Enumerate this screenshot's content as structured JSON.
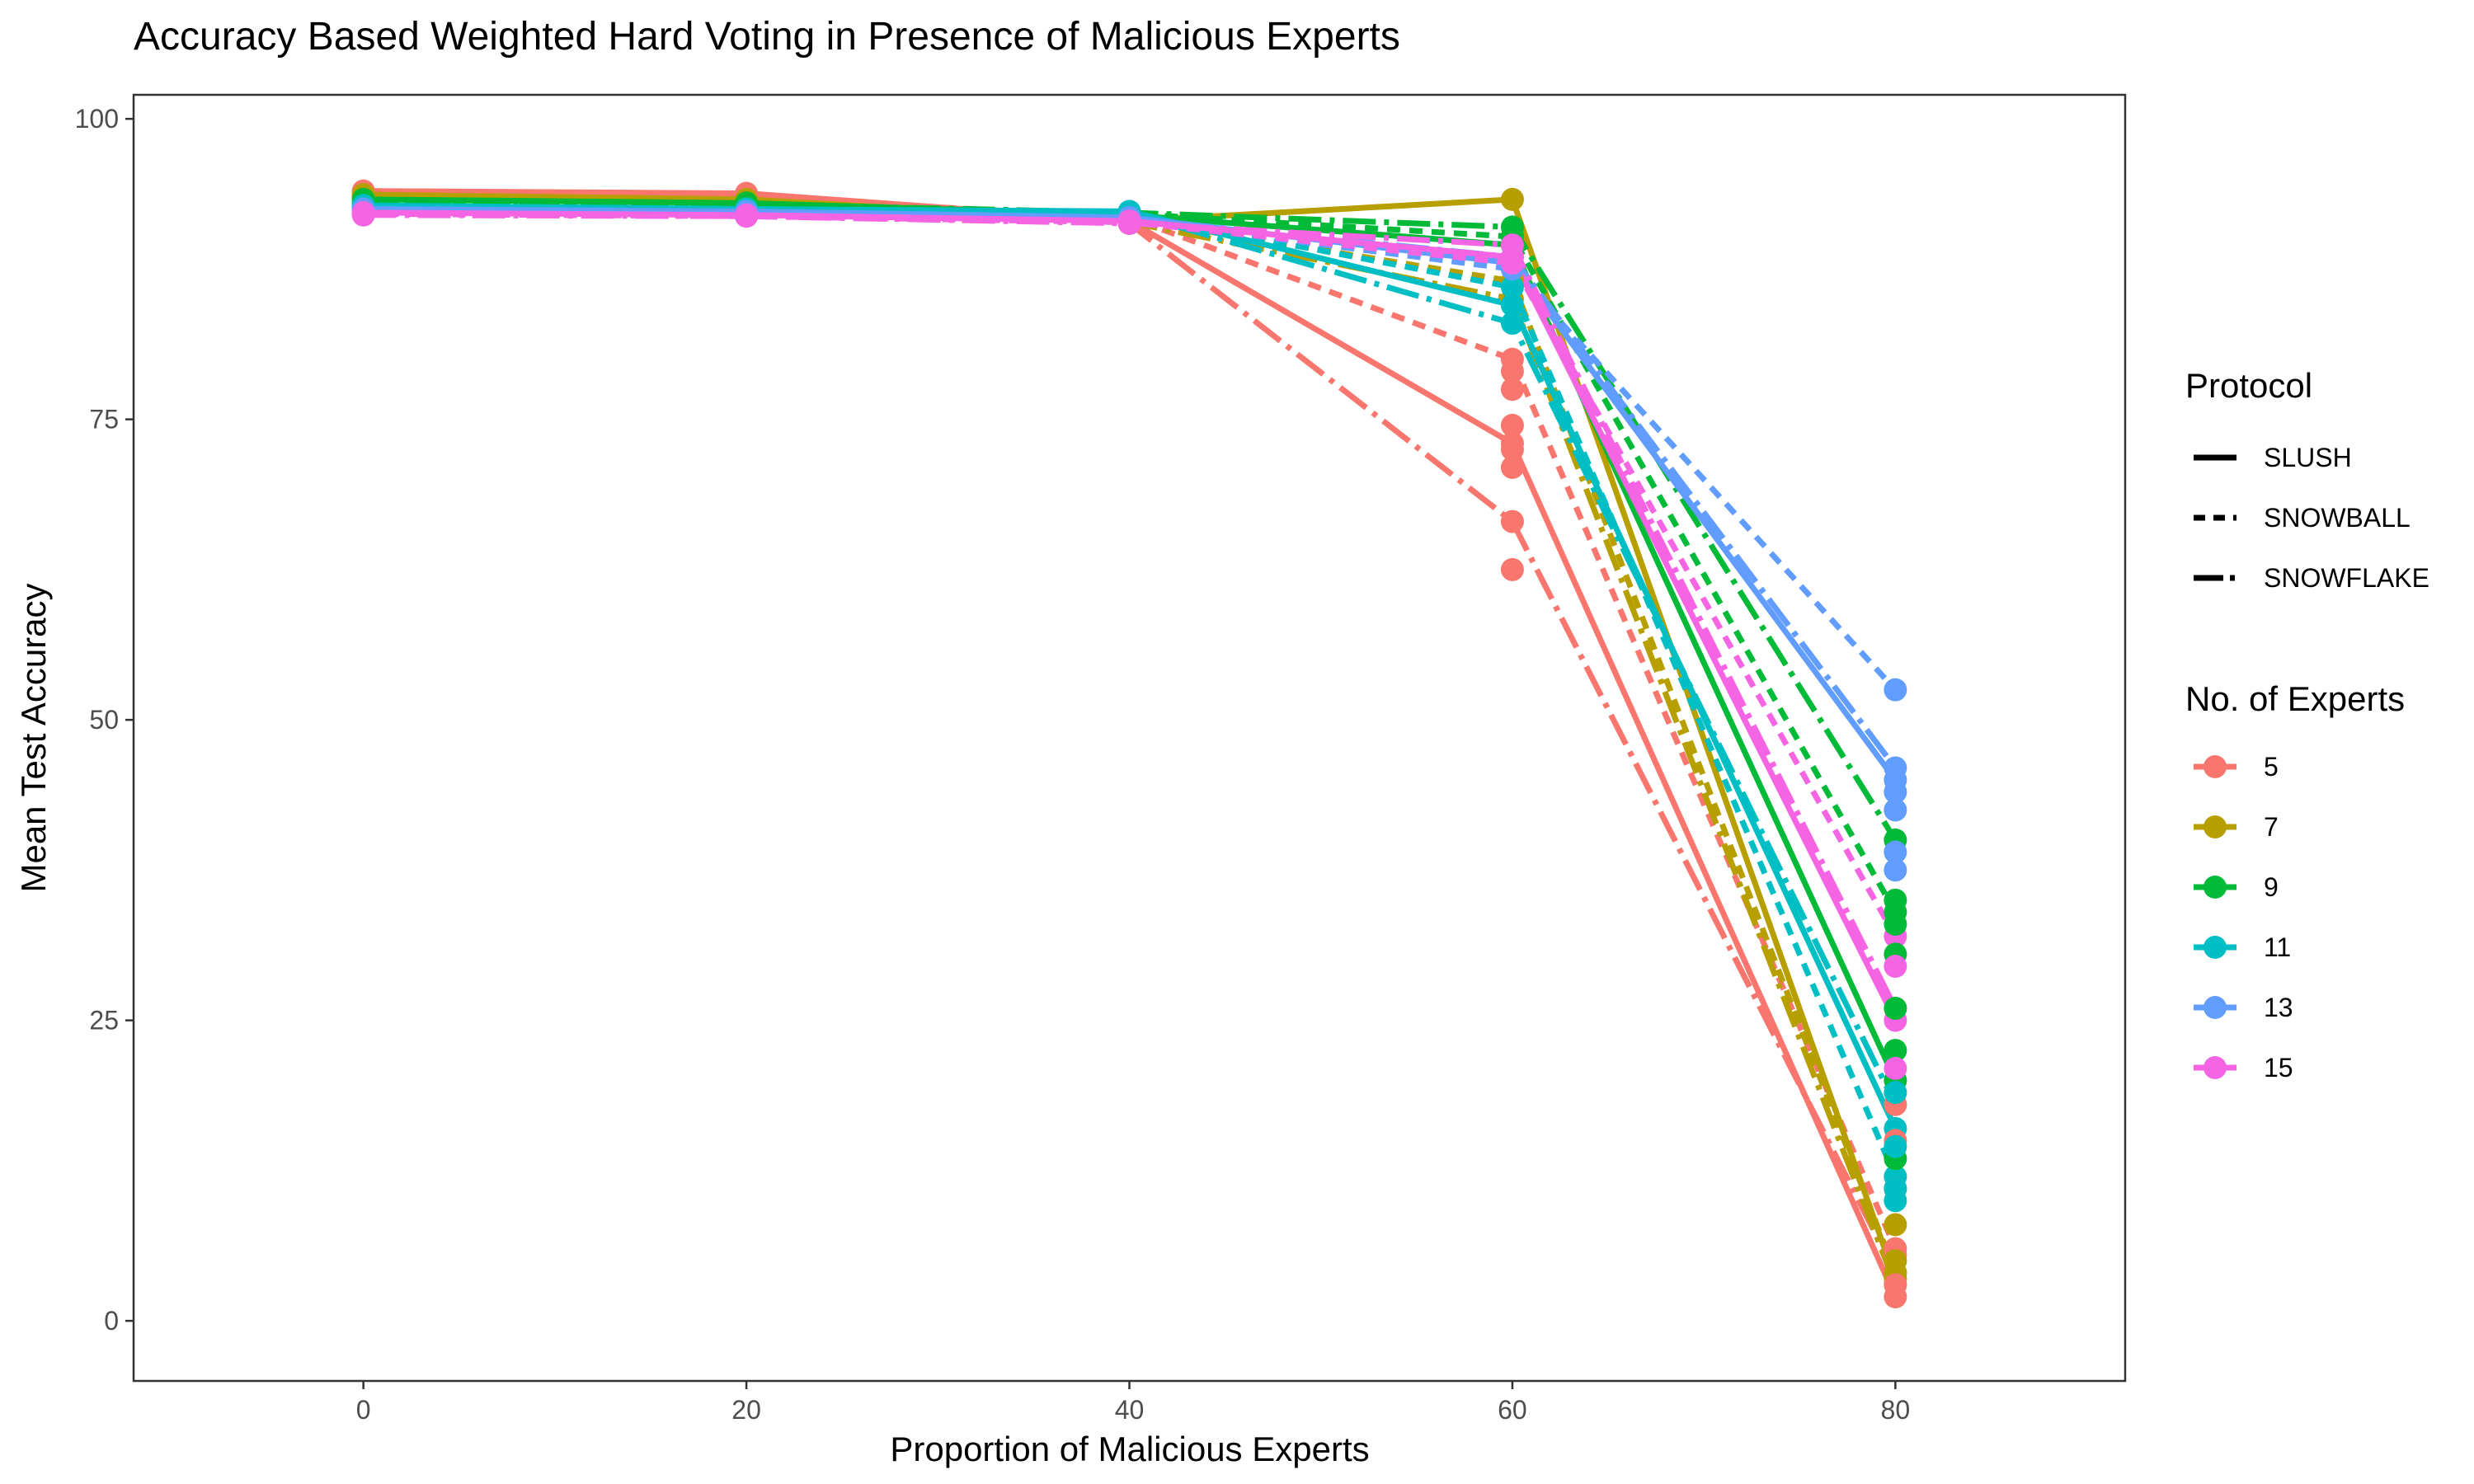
{
  "chart_data": {
    "type": "line",
    "title": "Accuracy Based Weighted Hard Voting in Presence of Malicious Experts",
    "xlabel": "Proportion of Malicious Experts",
    "ylabel": "Mean Test Accuracy",
    "xlim": [
      -12,
      92
    ],
    "ylim": [
      -5,
      102
    ],
    "x_ticks": [
      0,
      20,
      40,
      60,
      80
    ],
    "y_ticks": [
      0,
      25,
      50,
      75,
      100
    ],
    "x": [
      0,
      20,
      40,
      60,
      80
    ],
    "grid": false,
    "legend_position": "right",
    "legends": {
      "protocol": {
        "title": "Protocol",
        "entries": [
          {
            "label": "SLUSH",
            "linetype": "solid"
          },
          {
            "label": "SNOWBALL",
            "linetype": "dashed"
          },
          {
            "label": "SNOWFLAKE",
            "linetype": "longdash"
          }
        ]
      },
      "experts": {
        "title": "No. of Experts",
        "entries": [
          {
            "label": "5",
            "color": "#F8766D"
          },
          {
            "label": "7",
            "color": "#B79F00"
          },
          {
            "label": "9",
            "color": "#00BA38"
          },
          {
            "label": "11",
            "color": "#00BFC4"
          },
          {
            "label": "13",
            "color": "#619CFF"
          },
          {
            "label": "15",
            "color": "#F564E3"
          }
        ]
      }
    },
    "series": [
      {
        "experts": "5",
        "protocol": "SLUSH",
        "linetype": "solid",
        "values": [
          94,
          93.8,
          91.5,
          73,
          2
        ]
      },
      {
        "experts": "5",
        "protocol": "SNOWBALL",
        "linetype": "dashed",
        "values": [
          93.5,
          93.5,
          91.8,
          80,
          6
        ]
      },
      {
        "experts": "5",
        "protocol": "SNOWFLAKE",
        "linetype": "longdash",
        "values": [
          93.8,
          93.6,
          91.3,
          66.5,
          4
        ]
      },
      {
        "experts": "7",
        "protocol": "SLUSH",
        "linetype": "solid",
        "values": [
          93.7,
          93.3,
          91.5,
          93.3,
          3.5
        ]
      },
      {
        "experts": "7",
        "protocol": "SNOWBALL",
        "linetype": "dashed",
        "values": [
          93.5,
          93.2,
          91.7,
          86.5,
          4
        ]
      },
      {
        "experts": "7",
        "protocol": "SNOWFLAKE",
        "linetype": "longdash",
        "values": [
          93.5,
          93.1,
          91.4,
          85,
          3
        ]
      },
      {
        "experts": "9",
        "protocol": "SLUSH",
        "linetype": "solid",
        "values": [
          93.3,
          93,
          92,
          89.5,
          20
        ]
      },
      {
        "experts": "9",
        "protocol": "SNOWBALL",
        "linetype": "dashed",
        "values": [
          93,
          92.8,
          92.1,
          90.2,
          34
        ]
      },
      {
        "experts": "9",
        "protocol": "SNOWFLAKE",
        "linetype": "longdash",
        "values": [
          93.1,
          92.9,
          92.2,
          91,
          40
        ]
      },
      {
        "experts": "11",
        "protocol": "SLUSH",
        "linetype": "solid",
        "values": [
          92.8,
          92.5,
          92.3,
          84.5,
          16
        ]
      },
      {
        "experts": "11",
        "protocol": "SNOWBALL",
        "linetype": "dashed",
        "values": [
          92.6,
          92.4,
          92.1,
          86,
          12
        ]
      },
      {
        "experts": "11",
        "protocol": "SNOWFLAKE",
        "linetype": "longdash",
        "values": [
          92.7,
          92.5,
          92.2,
          83,
          18
        ]
      },
      {
        "experts": "13",
        "protocol": "SLUSH",
        "linetype": "solid",
        "values": [
          92.5,
          92.3,
          91.8,
          88,
          45
        ]
      },
      {
        "experts": "13",
        "protocol": "SNOWBALL",
        "linetype": "dashed",
        "values": [
          92.4,
          92.2,
          91.6,
          87.5,
          52.5
        ]
      },
      {
        "experts": "13",
        "protocol": "SNOWFLAKE",
        "linetype": "longdash",
        "values": [
          92.5,
          92.2,
          91.7,
          88.5,
          46
        ]
      },
      {
        "experts": "15",
        "protocol": "SLUSH",
        "linetype": "solid",
        "values": [
          92.2,
          92,
          91.5,
          88.5,
          25
        ]
      },
      {
        "experts": "15",
        "protocol": "SNOWBALL",
        "linetype": "dashed",
        "values": [
          92.1,
          91.9,
          91.4,
          88,
          32
        ]
      },
      {
        "experts": "15",
        "protocol": "SNOWFLAKE",
        "linetype": "longdash",
        "values": [
          92,
          91.9,
          91.3,
          89.5,
          26
        ]
      }
    ],
    "extra_points": [
      {
        "experts": "5",
        "x": 60,
        "values": [
          79,
          77.5,
          74.5,
          72.5,
          71,
          62.5
        ]
      },
      {
        "experts": "5",
        "x": 80,
        "values": [
          18,
          15,
          11,
          5.5,
          3
        ]
      },
      {
        "experts": "7",
        "x": 80,
        "values": [
          8,
          5
        ]
      },
      {
        "experts": "9",
        "x": 80,
        "values": [
          35,
          33,
          30.5,
          26,
          22.5,
          13.5
        ]
      },
      {
        "experts": "11",
        "x": 80,
        "values": [
          19,
          14.5,
          11,
          10
        ]
      },
      {
        "experts": "13",
        "x": 80,
        "values": [
          44,
          42.5,
          39,
          37.5
        ]
      },
      {
        "experts": "15",
        "x": 80,
        "values": [
          21,
          29.5
        ]
      }
    ]
  }
}
